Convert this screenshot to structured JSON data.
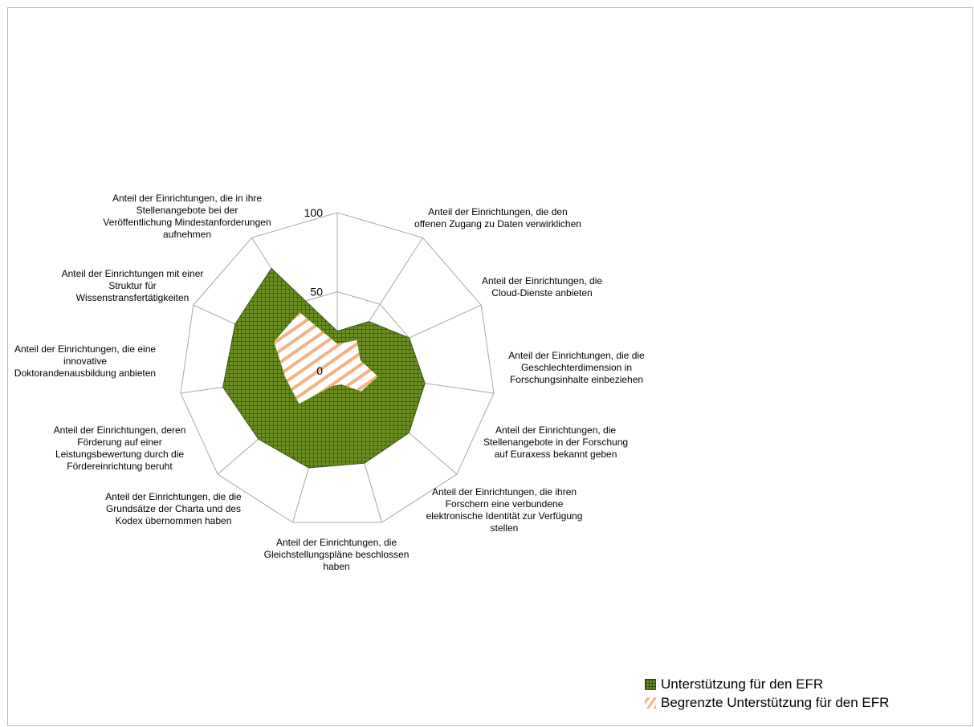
{
  "chart_data": {
    "type": "radar",
    "title": "",
    "r_range": [
      0,
      100
    ],
    "r_ticks": [
      "0",
      "50",
      "100"
    ],
    "categories": [
      "Anteil der Einrichtungen, die den offenen Zugang zu Daten verwirklichen",
      "Anteil der Einrichtungen, die Cloud-Dienste anbieten",
      "Anteil der Einrichtungen, die die Geschlechterdimension in Forschungsinhalte einbeziehen",
      "Anteil der Einrichtungen, die Stellenangebote in der Forschung auf Euraxess bekannt geben",
      "Anteil der Einrichtungen, die ihren Forschern eine verbundene elektronische Identität zur Verfügung stellen",
      "Anteil der Einrichtungen, die Gleichstellungspläne beschlossen haben",
      "Anteil der Einrichtungen, die die Grundsätze der Charta und des Kodex übernommen haben",
      "Anteil der Einrichtungen, deren Förderung auf einer Leistungsbewertung durch die Fördereinrichtung beruht",
      "Anteil der Einrichtungen, die eine innovative Doktorandenausbildung anbieten",
      "Anteil der Einrichtungen mit einer Struktur für Wissenstransfertätigkeiten",
      "Anteil der Einrichtungen, die in ihre Stellenangebote bei der Veröffentlichung Mindestanforderungen aufnehmen"
    ],
    "series": [
      {
        "name": "Unterstützung für den EFR",
        "color": "#6b8e23",
        "values": [
          25,
          37,
          50,
          56,
          60,
          61,
          64,
          66,
          73,
          71,
          77
        ]
      },
      {
        "name": "Begrenzte Unterstützung für den EFR",
        "color": "#f4b183",
        "values": [
          17,
          23,
          16,
          26,
          20,
          9,
          10,
          32,
          33,
          44,
          44
        ]
      }
    ]
  },
  "legend": {
    "items": [
      {
        "label": "Unterstützung für den EFR"
      },
      {
        "label": "Begrenzte Unterstützung für den EFR"
      }
    ]
  }
}
